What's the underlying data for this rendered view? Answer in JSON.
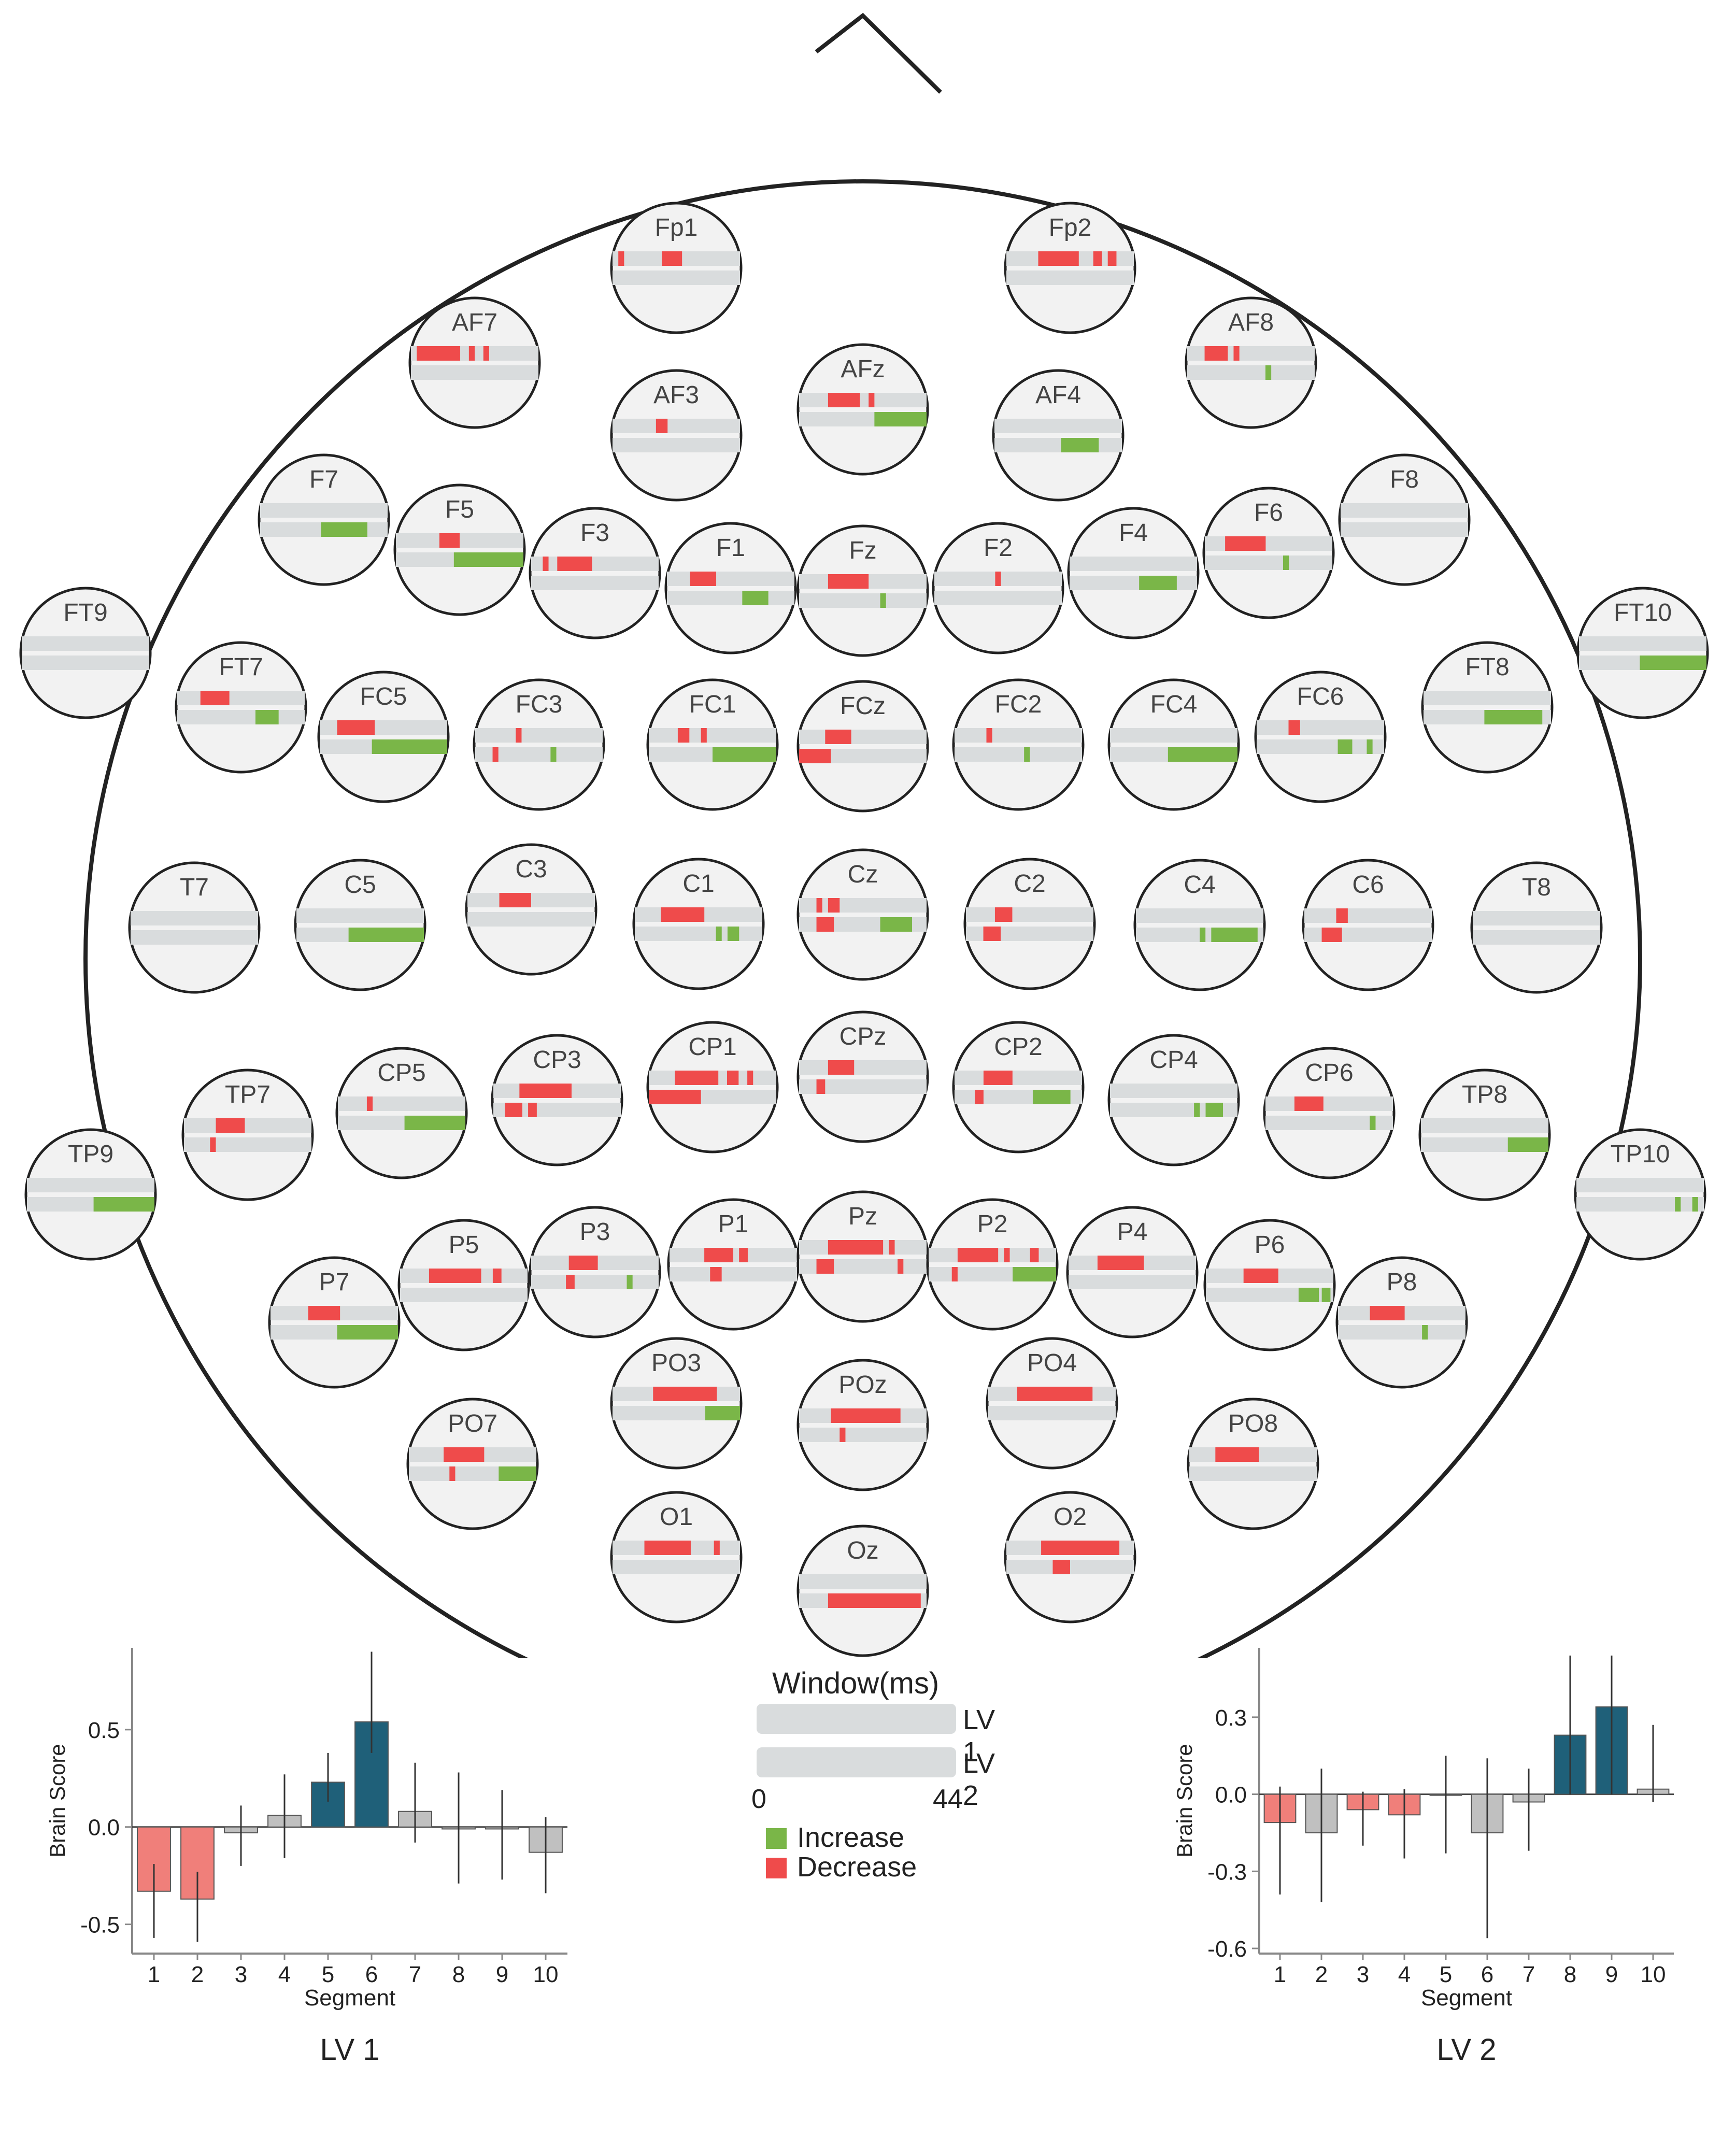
{
  "chart_data": {
    "type": "topographic-raster",
    "window_label": "Window(ms)",
    "window_start": "0",
    "window_end": "44",
    "lv_labels": [
      "LV 1",
      "LV 2"
    ],
    "legend": {
      "increase_label": "Increase",
      "decrease_label": "Decrease",
      "increase_color": "#7ab648",
      "decrease_color": "#ef4b4b",
      "track_color": "#d9dcdd",
      "head_fill": "#ffffff",
      "electrode_fill": "#f2f2f2"
    },
    "electrodes": [
      {
        "name": "Fp1",
        "lv1": [
          [
            2,
            4,
            "dec"
          ],
          [
            17,
            24,
            "dec"
          ]
        ],
        "lv2": []
      },
      {
        "name": "Fp2",
        "lv1": [
          [
            11,
            25,
            "dec"
          ],
          [
            30,
            33,
            "dec"
          ],
          [
            35,
            38,
            "dec"
          ]
        ],
        "lv2": []
      },
      {
        "name": "AF7",
        "lv1": [
          [
            2,
            17,
            "dec"
          ],
          [
            20,
            22,
            "dec"
          ],
          [
            25,
            27,
            "dec"
          ]
        ],
        "lv2": []
      },
      {
        "name": "AF8",
        "lv1": [
          [
            6,
            14,
            "dec"
          ],
          [
            16,
            18,
            "dec"
          ]
        ],
        "lv2": [
          [
            27,
            29,
            "inc"
          ]
        ]
      },
      {
        "name": "AF3",
        "lv1": [
          [
            15,
            19,
            "dec"
          ]
        ],
        "lv2": []
      },
      {
        "name": "AFz",
        "lv1": [
          [
            10,
            21,
            "dec"
          ],
          [
            24,
            26,
            "dec"
          ]
        ],
        "lv2": [
          [
            26,
            44,
            "inc"
          ]
        ]
      },
      {
        "name": "AF4",
        "lv1": [],
        "lv2": [
          [
            23,
            36,
            "inc"
          ]
        ]
      },
      {
        "name": "F7",
        "lv1": [],
        "lv2": [
          [
            21,
            37,
            "inc"
          ]
        ]
      },
      {
        "name": "F5",
        "lv1": [
          [
            15,
            22,
            "dec"
          ]
        ],
        "lv2": [
          [
            20,
            44,
            "inc"
          ]
        ]
      },
      {
        "name": "F3",
        "lv1": [
          [
            4,
            6,
            "dec"
          ],
          [
            9,
            21,
            "dec"
          ]
        ],
        "lv2": []
      },
      {
        "name": "F1",
        "lv1": [
          [
            8,
            17,
            "dec"
          ]
        ],
        "lv2": [
          [
            26,
            35,
            "inc"
          ]
        ]
      },
      {
        "name": "Fz",
        "lv1": [
          [
            10,
            24,
            "dec"
          ]
        ],
        "lv2": [
          [
            28,
            30,
            "inc"
          ]
        ]
      },
      {
        "name": "F2",
        "lv1": [
          [
            21,
            23,
            "dec"
          ]
        ],
        "lv2": []
      },
      {
        "name": "F4",
        "lv1": [],
        "lv2": [
          [
            24,
            37,
            "inc"
          ]
        ]
      },
      {
        "name": "F6",
        "lv1": [
          [
            7,
            21,
            "dec"
          ]
        ],
        "lv2": [
          [
            27,
            29,
            "inc"
          ]
        ]
      },
      {
        "name": "F8",
        "lv1": [],
        "lv2": []
      },
      {
        "name": "FT9",
        "lv1": [],
        "lv2": []
      },
      {
        "name": "FT7",
        "lv1": [
          [
            8,
            18,
            "dec"
          ]
        ],
        "lv2": [
          [
            27,
            35,
            "inc"
          ]
        ]
      },
      {
        "name": "FC5",
        "lv1": [
          [
            6,
            19,
            "dec"
          ]
        ],
        "lv2": [
          [
            18,
            44,
            "inc"
          ]
        ]
      },
      {
        "name": "FC3",
        "lv1": [
          [
            14,
            16,
            "dec"
          ]
        ],
        "lv2": [
          [
            6,
            8,
            "dec"
          ],
          [
            26,
            28,
            "inc"
          ]
        ]
      },
      {
        "name": "FC1",
        "lv1": [
          [
            10,
            14,
            "dec"
          ],
          [
            18,
            20,
            "dec"
          ]
        ],
        "lv2": [
          [
            22,
            44,
            "inc"
          ]
        ]
      },
      {
        "name": "FCz",
        "lv1": [
          [
            9,
            18,
            "dec"
          ]
        ],
        "lv2": [
          [
            0,
            11,
            "dec"
          ]
        ]
      },
      {
        "name": "FC2",
        "lv1": [
          [
            11,
            13,
            "dec"
          ]
        ],
        "lv2": [
          [
            24,
            26,
            "inc"
          ]
        ]
      },
      {
        "name": "FC4",
        "lv1": [],
        "lv2": [
          [
            20,
            44,
            "inc"
          ]
        ]
      },
      {
        "name": "FC6",
        "lv1": [
          [
            11,
            15,
            "dec"
          ]
        ],
        "lv2": [
          [
            28,
            33,
            "inc"
          ],
          [
            38,
            40,
            "inc"
          ]
        ]
      },
      {
        "name": "FT8",
        "lv1": [],
        "lv2": [
          [
            21,
            41,
            "inc"
          ]
        ]
      },
      {
        "name": "FT10",
        "lv1": [],
        "lv2": [
          [
            21,
            44,
            "inc"
          ]
        ]
      },
      {
        "name": "T7",
        "lv1": [],
        "lv2": []
      },
      {
        "name": "C5",
        "lv1": [],
        "lv2": [
          [
            18,
            44,
            "inc"
          ]
        ]
      },
      {
        "name": "C3",
        "lv1": [
          [
            11,
            22,
            "dec"
          ]
        ],
        "lv2": []
      },
      {
        "name": "C1",
        "lv1": [
          [
            9,
            24,
            "dec"
          ]
        ],
        "lv2": [
          [
            28,
            30,
            "inc"
          ],
          [
            32,
            36,
            "inc"
          ]
        ]
      },
      {
        "name": "Cz",
        "lv1": [
          [
            6,
            8,
            "dec"
          ],
          [
            10,
            14,
            "dec"
          ]
        ],
        "lv2": [
          [
            6,
            12,
            "dec"
          ],
          [
            28,
            39,
            "inc"
          ]
        ]
      },
      {
        "name": "C2",
        "lv1": [
          [
            10,
            16,
            "dec"
          ]
        ],
        "lv2": [
          [
            6,
            12,
            "dec"
          ]
        ]
      },
      {
        "name": "C4",
        "lv1": [],
        "lv2": [
          [
            22,
            24,
            "inc"
          ],
          [
            26,
            42,
            "inc"
          ]
        ]
      },
      {
        "name": "C6",
        "lv1": [
          [
            11,
            15,
            "dec"
          ]
        ],
        "lv2": [
          [
            6,
            13,
            "dec"
          ]
        ]
      },
      {
        "name": "T8",
        "lv1": [],
        "lv2": []
      },
      {
        "name": "TP9",
        "lv1": [],
        "lv2": [
          [
            23,
            44,
            "inc"
          ]
        ]
      },
      {
        "name": "TP7",
        "lv1": [
          [
            11,
            21,
            "dec"
          ]
        ],
        "lv2": [
          [
            9,
            11,
            "dec"
          ]
        ]
      },
      {
        "name": "CP5",
        "lv1": [
          [
            10,
            12,
            "dec"
          ]
        ],
        "lv2": [
          [
            23,
            44,
            "inc"
          ]
        ]
      },
      {
        "name": "CP3",
        "lv1": [
          [
            9,
            27,
            "dec"
          ]
        ],
        "lv2": [
          [
            4,
            10,
            "dec"
          ],
          [
            12,
            15,
            "dec"
          ]
        ]
      },
      {
        "name": "CP1",
        "lv1": [
          [
            9,
            24,
            "dec"
          ],
          [
            27,
            31,
            "dec"
          ],
          [
            34,
            36,
            "dec"
          ]
        ],
        "lv2": [
          [
            0,
            18,
            "dec"
          ]
        ]
      },
      {
        "name": "CPz",
        "lv1": [
          [
            10,
            19,
            "dec"
          ]
        ],
        "lv2": [
          [
            6,
            9,
            "dec"
          ]
        ]
      },
      {
        "name": "CP2",
        "lv1": [
          [
            10,
            20,
            "dec"
          ]
        ],
        "lv2": [
          [
            7,
            10,
            "dec"
          ],
          [
            27,
            40,
            "inc"
          ]
        ]
      },
      {
        "name": "CP4",
        "lv1": [],
        "lv2": [
          [
            29,
            31,
            "inc"
          ],
          [
            33,
            39,
            "inc"
          ]
        ]
      },
      {
        "name": "CP6",
        "lv1": [
          [
            10,
            20,
            "dec"
          ]
        ],
        "lv2": [
          [
            36,
            38,
            "inc"
          ]
        ]
      },
      {
        "name": "TP8",
        "lv1": [],
        "lv2": [
          [
            30,
            44,
            "inc"
          ]
        ]
      },
      {
        "name": "TP10",
        "lv1": [],
        "lv2": [
          [
            34,
            36,
            "inc"
          ],
          [
            40,
            42,
            "inc"
          ]
        ]
      },
      {
        "name": "P7",
        "lv1": [
          [
            13,
            24,
            "dec"
          ]
        ],
        "lv2": [
          [
            23,
            44,
            "inc"
          ]
        ]
      },
      {
        "name": "P5",
        "lv1": [
          [
            10,
            28,
            "dec"
          ],
          [
            32,
            35,
            "dec"
          ]
        ],
        "lv2": []
      },
      {
        "name": "P3",
        "lv1": [
          [
            13,
            23,
            "dec"
          ]
        ],
        "lv2": [
          [
            12,
            15,
            "dec"
          ],
          [
            33,
            35,
            "inc"
          ]
        ]
      },
      {
        "name": "P1",
        "lv1": [
          [
            12,
            22,
            "dec"
          ],
          [
            24,
            27,
            "dec"
          ]
        ],
        "lv2": [
          [
            14,
            18,
            "dec"
          ]
        ]
      },
      {
        "name": "Pz",
        "lv1": [
          [
            10,
            29,
            "dec"
          ],
          [
            31,
            33,
            "dec"
          ]
        ],
        "lv2": [
          [
            6,
            12,
            "dec"
          ],
          [
            34,
            36,
            "dec"
          ]
        ]
      },
      {
        "name": "P2",
        "lv1": [
          [
            10,
            24,
            "dec"
          ],
          [
            26,
            28,
            "dec"
          ],
          [
            35,
            38,
            "dec"
          ]
        ],
        "lv2": [
          [
            8,
            10,
            "dec"
          ],
          [
            29,
            44,
            "inc"
          ]
        ]
      },
      {
        "name": "P4",
        "lv1": [
          [
            10,
            26,
            "dec"
          ]
        ],
        "lv2": []
      },
      {
        "name": "P6",
        "lv1": [
          [
            13,
            25,
            "dec"
          ]
        ],
        "lv2": [
          [
            32,
            39,
            "inc"
          ],
          [
            40,
            43,
            "inc"
          ]
        ]
      },
      {
        "name": "P8",
        "lv1": [
          [
            11,
            23,
            "dec"
          ]
        ],
        "lv2": [
          [
            29,
            31,
            "inc"
          ]
        ]
      },
      {
        "name": "PO3",
        "lv1": [
          [
            14,
            36,
            "dec"
          ]
        ],
        "lv2": [
          [
            32,
            44,
            "inc"
          ]
        ]
      },
      {
        "name": "POz",
        "lv1": [
          [
            11,
            35,
            "dec"
          ]
        ],
        "lv2": [
          [
            14,
            16,
            "dec"
          ]
        ]
      },
      {
        "name": "PO4",
        "lv1": [
          [
            10,
            36,
            "dec"
          ]
        ],
        "lv2": []
      },
      {
        "name": "PO7",
        "lv1": [
          [
            12,
            26,
            "dec"
          ]
        ],
        "lv2": [
          [
            14,
            16,
            "dec"
          ],
          [
            31,
            44,
            "inc"
          ]
        ]
      },
      {
        "name": "PO8",
        "lv1": [
          [
            9,
            24,
            "dec"
          ]
        ],
        "lv2": []
      },
      {
        "name": "O1",
        "lv1": [
          [
            11,
            27,
            "dec"
          ],
          [
            35,
            37,
            "dec"
          ]
        ],
        "lv2": []
      },
      {
        "name": "Oz",
        "lv1": [],
        "lv2": [
          [
            10,
            42,
            "dec"
          ]
        ]
      },
      {
        "name": "O2",
        "lv1": [
          [
            12,
            39,
            "dec"
          ]
        ],
        "lv2": [
          [
            16,
            22,
            "dec"
          ]
        ]
      }
    ],
    "bar_charts": [
      {
        "title": "LV 1",
        "xlabel": "Segment",
        "ylabel": "Brain Score",
        "ylim": [
          -0.65,
          0.92
        ],
        "yticks": [
          -0.5,
          0.0,
          0.5
        ],
        "ytick_labels": [
          "-0.5",
          "0.0",
          "0.5"
        ],
        "categories": [
          "1",
          "2",
          "3",
          "4",
          "5",
          "6",
          "7",
          "8",
          "9",
          "10"
        ],
        "values": [
          -0.33,
          -0.37,
          -0.03,
          0.06,
          0.23,
          0.54,
          0.08,
          -0.01,
          -0.01,
          -0.13
        ],
        "err_low": [
          -0.57,
          -0.59,
          -0.2,
          -0.16,
          0.13,
          0.38,
          -0.08,
          -0.29,
          -0.27,
          -0.34
        ],
        "err_high": [
          -0.19,
          -0.23,
          0.11,
          0.27,
          0.38,
          0.9,
          0.33,
          0.28,
          0.19,
          0.05
        ],
        "colors": [
          "#f07f7a",
          "#f07f7a",
          "#c0c0c0",
          "#c0c0c0",
          "#1f6079",
          "#1f6079",
          "#c0c0c0",
          "#c0c0c0",
          "#c0c0c0",
          "#c0c0c0"
        ]
      },
      {
        "title": "LV 2",
        "xlabel": "Segment",
        "ylabel": "Brain Score",
        "ylim": [
          -0.62,
          0.57
        ],
        "yticks": [
          -0.6,
          -0.3,
          0.0,
          0.3
        ],
        "ytick_labels": [
          "-0.6",
          "-0.3",
          "0.0",
          "0.3"
        ],
        "categories": [
          "1",
          "2",
          "3",
          "4",
          "5",
          "6",
          "7",
          "8",
          "9",
          "10"
        ],
        "values": [
          -0.11,
          -0.15,
          -0.06,
          -0.08,
          0.0,
          -0.15,
          -0.03,
          0.23,
          0.34,
          0.02
        ],
        "err_low": [
          -0.39,
          -0.42,
          -0.2,
          -0.25,
          -0.23,
          -0.56,
          -0.22,
          0.0,
          0.0,
          -0.03
        ],
        "err_high": [
          0.03,
          0.1,
          0.01,
          0.02,
          0.15,
          0.14,
          0.1,
          0.54,
          0.54,
          0.27
        ],
        "colors": [
          "#f07f7a",
          "#c0c0c0",
          "#f07f7a",
          "#f07f7a",
          "#c0c0c0",
          "#c0c0c0",
          "#c0c0c0",
          "#1f6079",
          "#1f6079",
          "#c0c0c0"
        ]
      }
    ]
  }
}
